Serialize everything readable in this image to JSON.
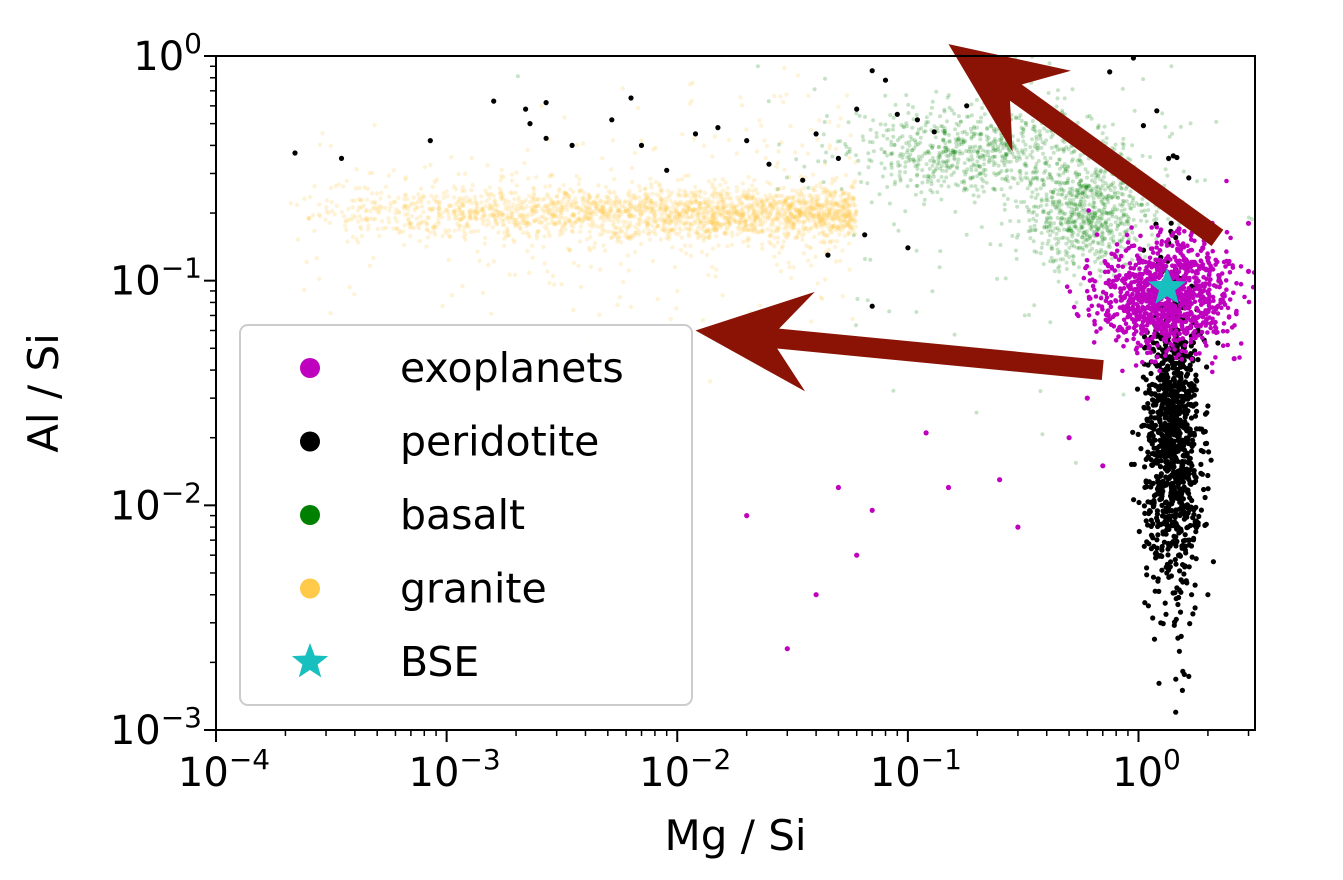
{
  "chart_data": {
    "type": "scatter",
    "xlabel": "Mg / Si",
    "ylabel": "Al / Si",
    "xscale": "log",
    "yscale": "log",
    "xlim": [
      0.0001,
      3.2
    ],
    "ylim": [
      0.001,
      1.0
    ],
    "x_ticks": [
      {
        "base": "10",
        "exp": "−4",
        "value": 0.0001
      },
      {
        "base": "10",
        "exp": "−3",
        "value": 0.001
      },
      {
        "base": "10",
        "exp": "−2",
        "value": 0.01
      },
      {
        "base": "10",
        "exp": "−1",
        "value": 0.1
      },
      {
        "base": "10",
        "exp": "0",
        "value": 1
      }
    ],
    "y_ticks": [
      {
        "base": "10",
        "exp": "−3",
        "value": 0.001
      },
      {
        "base": "10",
        "exp": "−2",
        "value": 0.01
      },
      {
        "base": "10",
        "exp": "−1",
        "value": 0.1
      },
      {
        "base": "10",
        "exp": "0",
        "value": 1
      }
    ],
    "grid": false,
    "legend_position": "center-left",
    "series": [
      {
        "name": "exoplanets",
        "color": "#bf00bf",
        "marker": "circle",
        "clusters": [
          {
            "x_center": 1.3,
            "y_center": 0.085,
            "x_log_spread": 0.14,
            "y_log_spread": 0.12
          }
        ],
        "outliers": [
          [
            0.12,
            0.021
          ],
          [
            0.05,
            0.012
          ],
          [
            0.03,
            0.0023
          ],
          [
            0.06,
            0.006
          ],
          [
            0.04,
            0.004
          ],
          [
            0.02,
            0.009
          ],
          [
            0.07,
            0.0095
          ],
          [
            0.25,
            0.013
          ],
          [
            0.5,
            0.02
          ],
          [
            0.6,
            0.03
          ],
          [
            0.7,
            0.015
          ],
          [
            0.15,
            0.012
          ],
          [
            0.3,
            0.008
          ],
          [
            0.45,
            0.04
          ],
          [
            2.6,
            0.045
          ],
          [
            1.5,
            0.17
          ],
          [
            1.9,
            0.14
          ],
          [
            3.0,
            0.11
          ],
          [
            3.0,
            0.18
          ]
        ]
      },
      {
        "name": "peridotite",
        "color": "#000000",
        "marker": "circle",
        "clusters": [
          {
            "x_center": 1.4,
            "y_center": 0.02,
            "x_log_spread": 0.06,
            "y_log_spread": 0.35
          }
        ],
        "outliers": [
          [
            0.00022,
            0.37
          ],
          [
            0.00035,
            0.35
          ],
          [
            0.00085,
            0.42
          ],
          [
            0.0016,
            0.63
          ],
          [
            0.0022,
            0.58
          ],
          [
            0.0023,
            0.5
          ],
          [
            0.0027,
            0.62
          ],
          [
            0.0027,
            0.43
          ],
          [
            0.0035,
            0.4
          ],
          [
            0.0052,
            0.52
          ],
          [
            0.0063,
            0.65
          ],
          [
            0.007,
            0.4
          ],
          [
            0.009,
            0.31
          ],
          [
            0.012,
            0.45
          ],
          [
            0.015,
            0.48
          ],
          [
            0.02,
            0.42
          ],
          [
            0.025,
            0.33
          ],
          [
            0.035,
            0.28
          ],
          [
            0.04,
            0.45
          ],
          [
            0.05,
            0.35
          ],
          [
            0.06,
            0.58
          ],
          [
            0.07,
            0.86
          ],
          [
            0.08,
            0.78
          ],
          [
            0.09,
            0.55
          ],
          [
            0.11,
            0.52
          ],
          [
            0.13,
            0.46
          ],
          [
            0.18,
            0.6
          ],
          [
            0.045,
            0.13
          ],
          [
            0.065,
            0.16
          ],
          [
            0.07,
            0.077
          ],
          [
            0.1,
            0.14
          ],
          [
            0.95,
            0.98
          ],
          [
            0.75,
            0.85
          ],
          [
            1.05,
            0.49
          ],
          [
            1.2,
            0.57
          ],
          [
            1.35,
            0.35
          ],
          [
            1.7,
            0.004
          ],
          [
            1.55,
            0.0015
          ],
          [
            1.45,
            0.0012
          ],
          [
            1.25,
            0.003
          ],
          [
            2.0,
            0.004
          ]
        ]
      },
      {
        "name": "basalt",
        "color": "#008000",
        "marker": "circle",
        "clusters": [
          {
            "x_center": 0.2,
            "y_center": 0.38,
            "x_log_spread": 0.28,
            "y_log_spread": 0.1
          },
          {
            "x_center": 0.6,
            "y_center": 0.2,
            "x_log_spread": 0.14,
            "y_log_spread": 0.12
          }
        ]
      },
      {
        "name": "granite",
        "color": "#ffc94a",
        "marker": "circle",
        "clusters": [
          {
            "x_center": 0.002,
            "y_center": 0.2,
            "x_log_spread": 0.75,
            "y_log_spread": 0.06
          }
        ]
      },
      {
        "name": "BSE",
        "color": "#17bfbf",
        "marker": "star",
        "x": [
          1.33
        ],
        "y": [
          0.093
        ]
      }
    ],
    "arrows": [
      {
        "from": [
          0.7,
          0.04
        ],
        "to": [
          0.012,
          0.06
        ],
        "color": "#8b1306"
      },
      {
        "from": [
          2.2,
          0.155
        ],
        "to": [
          0.15,
          1.13
        ],
        "color": "#8b1306"
      }
    ],
    "legend": [
      {
        "name": "exoplanets",
        "color": "#bf00bf",
        "marker": "circle"
      },
      {
        "name": "peridotite",
        "color": "#000000",
        "marker": "circle"
      },
      {
        "name": "basalt",
        "color": "#008000",
        "marker": "circle"
      },
      {
        "name": "granite",
        "color": "#ffc94a",
        "marker": "circle"
      },
      {
        "name": "BSE",
        "color": "#17bfbf",
        "marker": "star"
      }
    ]
  }
}
